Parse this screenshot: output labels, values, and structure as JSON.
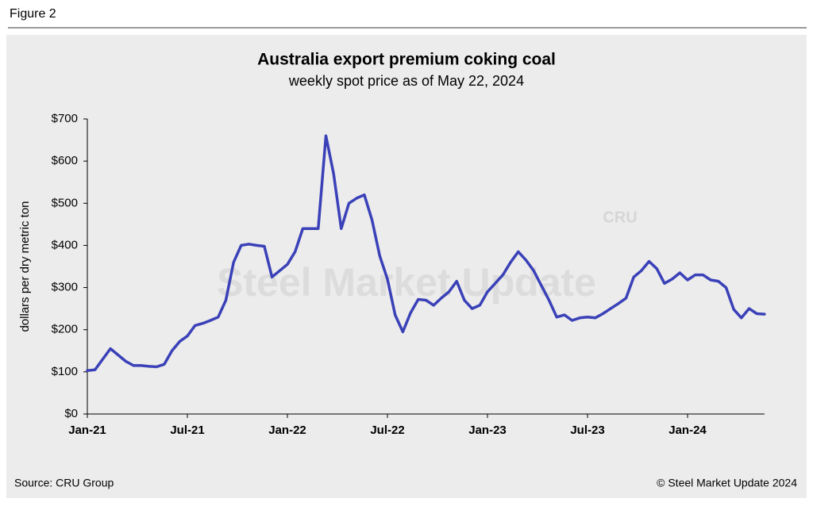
{
  "figure_label": "Figure 2",
  "source": "Source: CRU Group",
  "copyright": "© Steel Market Update 2024",
  "watermark": "Steel Market Update",
  "watermark_logo": "CRU",
  "chart_data": {
    "type": "line",
    "title": "Australia export premium coking coal",
    "subtitle": "weekly spot price as of May 22, 2024",
    "y_label": "dollars per dry metric ton",
    "categories": [
      "Jan-21",
      null,
      null,
      null,
      null,
      null,
      null,
      null,
      null,
      null,
      null,
      null,
      null,
      "Jul-21",
      null,
      null,
      null,
      null,
      null,
      null,
      null,
      null,
      null,
      null,
      null,
      null,
      "Jan-22",
      null,
      null,
      null,
      null,
      null,
      null,
      null,
      null,
      null,
      null,
      null,
      null,
      "Jul-22",
      null,
      null,
      null,
      null,
      null,
      null,
      null,
      null,
      null,
      null,
      null,
      null,
      "Jan-23",
      null,
      null,
      null,
      null,
      null,
      null,
      null,
      null,
      null,
      null,
      null,
      null,
      "Jul-23",
      null,
      null,
      null,
      null,
      null,
      null,
      null,
      null,
      null,
      null,
      null,
      null,
      "Jan-24",
      null,
      null,
      null,
      null,
      null,
      null,
      null,
      null,
      null,
      null
    ],
    "series": [
      {
        "name": "Australia export premium coking coal",
        "color": "#3a41b8",
        "values": [
          103,
          105,
          130,
          155,
          140,
          125,
          115,
          115,
          113,
          112,
          118,
          150,
          172,
          185,
          210,
          215,
          222,
          230,
          270,
          360,
          400,
          403,
          400,
          398,
          325,
          340,
          355,
          385,
          440,
          440,
          440,
          660,
          570,
          440,
          500,
          512,
          520,
          460,
          375,
          320,
          235,
          195,
          240,
          272,
          270,
          258,
          275,
          290,
          315,
          270,
          250,
          258,
          290,
          310,
          330,
          360,
          385,
          365,
          340,
          305,
          270,
          230,
          235,
          222,
          228,
          230,
          228,
          238,
          250,
          262,
          275,
          325,
          340,
          362,
          345,
          310,
          320,
          335,
          318,
          330,
          330,
          318,
          315,
          300,
          248,
          228,
          250,
          238,
          237
        ]
      }
    ],
    "ylim": [
      0,
      700
    ],
    "yticks": [
      {
        "value": 0,
        "label": "$0"
      },
      {
        "value": 100,
        "label": "$100"
      },
      {
        "value": 200,
        "label": "$200"
      },
      {
        "value": 300,
        "label": "$300"
      },
      {
        "value": 400,
        "label": "$400"
      },
      {
        "value": 500,
        "label": "$500"
      },
      {
        "value": 600,
        "label": "$600"
      },
      {
        "value": 700,
        "label": "$700"
      }
    ],
    "grid": false
  }
}
